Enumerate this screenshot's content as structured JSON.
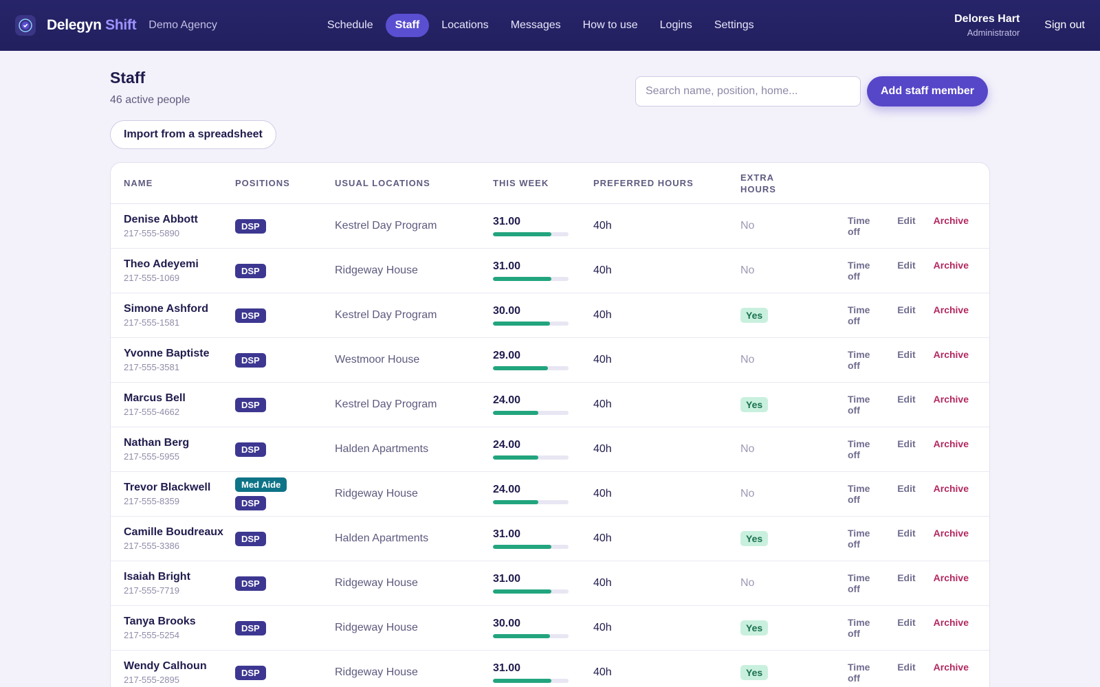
{
  "app": {
    "brand_main": "Delegyn",
    "brand_accent": "Shift",
    "agency": "Demo Agency"
  },
  "nav": {
    "items": [
      {
        "label": "Schedule"
      },
      {
        "label": "Staff",
        "active": true
      },
      {
        "label": "Locations"
      },
      {
        "label": "Messages"
      },
      {
        "label": "How to use"
      },
      {
        "label": "Logins"
      },
      {
        "label": "Settings"
      }
    ]
  },
  "user": {
    "name": "Delores Hart",
    "role": "Administrator",
    "signout": "Sign out"
  },
  "page": {
    "title": "Staff",
    "subtitle": "46 active people",
    "import_label": "Import from a spreadsheet",
    "search_placeholder": "Search name, position, home...",
    "add_label": "Add staff member"
  },
  "table": {
    "headers": {
      "name": "NAME",
      "positions": "POSITIONS",
      "locations": "USUAL LOCATIONS",
      "week": "THIS WEEK",
      "preferred": "PREFERRED HOURS",
      "extra_line1": "EXTRA",
      "extra_line2": "HOURS"
    },
    "action_labels": {
      "time_off": "Time off",
      "edit": "Edit",
      "archive": "Archive"
    },
    "rows": [
      {
        "name": "Denise Abbott",
        "phone": "217-555-5890",
        "positions": [
          "DSP"
        ],
        "location": "Kestrel Day Program",
        "week": "31.00",
        "week_fraction": 0.775,
        "preferred": "40h",
        "extra": "No"
      },
      {
        "name": "Theo Adeyemi",
        "phone": "217-555-1069",
        "positions": [
          "DSP"
        ],
        "location": "Ridgeway House",
        "week": "31.00",
        "week_fraction": 0.775,
        "preferred": "40h",
        "extra": "No"
      },
      {
        "name": "Simone Ashford",
        "phone": "217-555-1581",
        "positions": [
          "DSP"
        ],
        "location": "Kestrel Day Program",
        "week": "30.00",
        "week_fraction": 0.75,
        "preferred": "40h",
        "extra": "Yes"
      },
      {
        "name": "Yvonne Baptiste",
        "phone": "217-555-3581",
        "positions": [
          "DSP"
        ],
        "location": "Westmoor House",
        "week": "29.00",
        "week_fraction": 0.725,
        "preferred": "40h",
        "extra": "No"
      },
      {
        "name": "Marcus Bell",
        "phone": "217-555-4662",
        "positions": [
          "DSP"
        ],
        "location": "Kestrel Day Program",
        "week": "24.00",
        "week_fraction": 0.6,
        "preferred": "40h",
        "extra": "Yes"
      },
      {
        "name": "Nathan Berg",
        "phone": "217-555-5955",
        "positions": [
          "DSP"
        ],
        "location": "Halden Apartments",
        "week": "24.00",
        "week_fraction": 0.6,
        "preferred": "40h",
        "extra": "No"
      },
      {
        "name": "Trevor Blackwell",
        "phone": "217-555-8359",
        "positions": [
          "Med Aide",
          "DSP"
        ],
        "location": "Ridgeway House",
        "week": "24.00",
        "week_fraction": 0.6,
        "preferred": "40h",
        "extra": "No"
      },
      {
        "name": "Camille Boudreaux",
        "phone": "217-555-3386",
        "positions": [
          "DSP"
        ],
        "location": "Halden Apartments",
        "week": "31.00",
        "week_fraction": 0.775,
        "preferred": "40h",
        "extra": "Yes"
      },
      {
        "name": "Isaiah Bright",
        "phone": "217-555-7719",
        "positions": [
          "DSP"
        ],
        "location": "Ridgeway House",
        "week": "31.00",
        "week_fraction": 0.775,
        "preferred": "40h",
        "extra": "No"
      },
      {
        "name": "Tanya Brooks",
        "phone": "217-555-5254",
        "positions": [
          "DSP"
        ],
        "location": "Ridgeway House",
        "week": "30.00",
        "week_fraction": 0.75,
        "preferred": "40h",
        "extra": "Yes"
      },
      {
        "name": "Wendy Calhoun",
        "phone": "217-555-2895",
        "positions": [
          "DSP"
        ],
        "location": "Ridgeway House",
        "week": "31.00",
        "week_fraction": 0.775,
        "preferred": "40h",
        "extra": "Yes"
      }
    ]
  }
}
